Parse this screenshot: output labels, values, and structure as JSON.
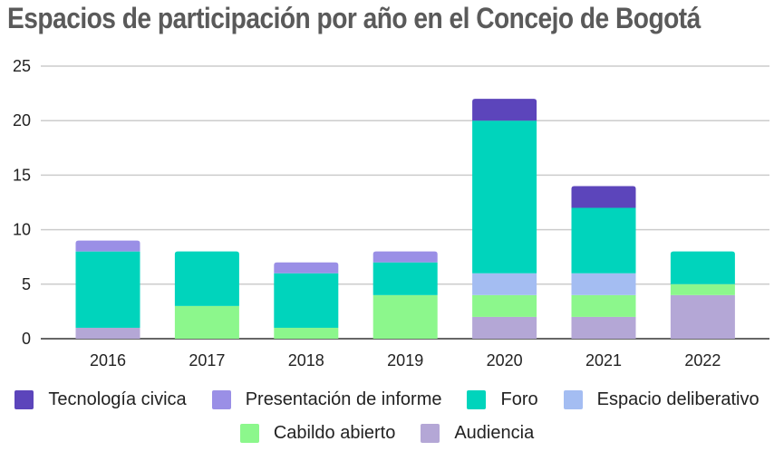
{
  "chart_data": {
    "type": "bar",
    "stacked": true,
    "title": "Espacios de participación por año en el Concejo de Bogotá",
    "xlabel": "",
    "ylabel": "",
    "categories": [
      "2016",
      "2017",
      "2018",
      "2019",
      "2020",
      "2021",
      "2022"
    ],
    "yticks": [
      "0",
      "5",
      "10",
      "15",
      "20",
      "25"
    ],
    "ylim": [
      0,
      25
    ],
    "grid": true,
    "legend_position": "bottom",
    "series": [
      {
        "name": "Audiencia",
        "color": "#b4a7d6",
        "values": [
          1,
          0,
          0,
          0,
          2,
          2,
          4
        ]
      },
      {
        "name": "Cabildo abierto",
        "color": "#8cf78c",
        "values": [
          0,
          3,
          1,
          4,
          2,
          2,
          1
        ]
      },
      {
        "name": "Espacio deliberativo",
        "color": "#a4bdf2",
        "values": [
          0,
          0,
          0,
          0,
          2,
          2,
          0
        ]
      },
      {
        "name": "Foro",
        "color": "#00d4bc",
        "values": [
          7,
          5,
          5,
          3,
          14,
          6,
          3
        ]
      },
      {
        "name": "Presentación de informe",
        "color": "#9a8fe6",
        "values": [
          1,
          0,
          1,
          1,
          0,
          0,
          0
        ]
      },
      {
        "name": "Tecnología civica",
        "color": "#5c45bb",
        "values": [
          0,
          0,
          0,
          0,
          2,
          2,
          0
        ]
      }
    ],
    "legend_rows": [
      [
        "Tecnología civica",
        "Presentación de informe",
        "Foro",
        "Espacio deliberativo"
      ],
      [
        "Cabildo abierto",
        "Audiencia"
      ]
    ]
  }
}
